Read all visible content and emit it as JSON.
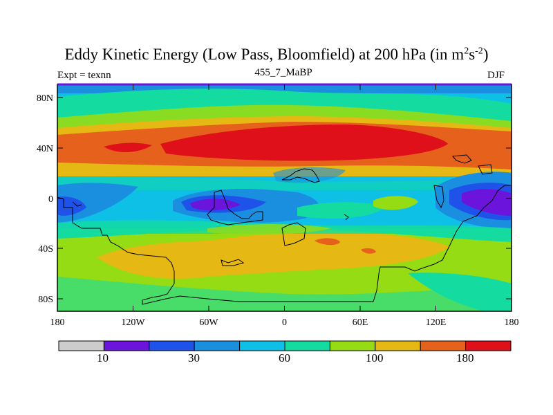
{
  "title": {
    "main": "Eddy Kinetic Energy (Low Pass, Bloomfield) at 200 hPa (in m",
    "sup1": "2",
    "mid": "s",
    "sup2": "-2",
    "close": ")"
  },
  "subtitle": {
    "left": "Expt = texnn",
    "center": "455_7_MaBP",
    "right": "DJF"
  },
  "axes": {
    "y_ticks": [
      "80N",
      "40N",
      "0",
      "40S",
      "80S"
    ],
    "x_ticks": [
      "180",
      "120W",
      "60W",
      "0",
      "60E",
      "120E",
      "180"
    ]
  },
  "colorbar": {
    "colors": [
      "#cccccc",
      "#6a14dc",
      "#1f52e8",
      "#1a8fe0",
      "#0ec0e6",
      "#14dca0",
      "#96dc14",
      "#e6b814",
      "#e6621c",
      "#e0101a"
    ],
    "labels": [
      "10",
      "30",
      "60",
      "100",
      "180"
    ]
  },
  "colors": {
    "background": "#0ec0e6",
    "frame": "#000000"
  }
}
